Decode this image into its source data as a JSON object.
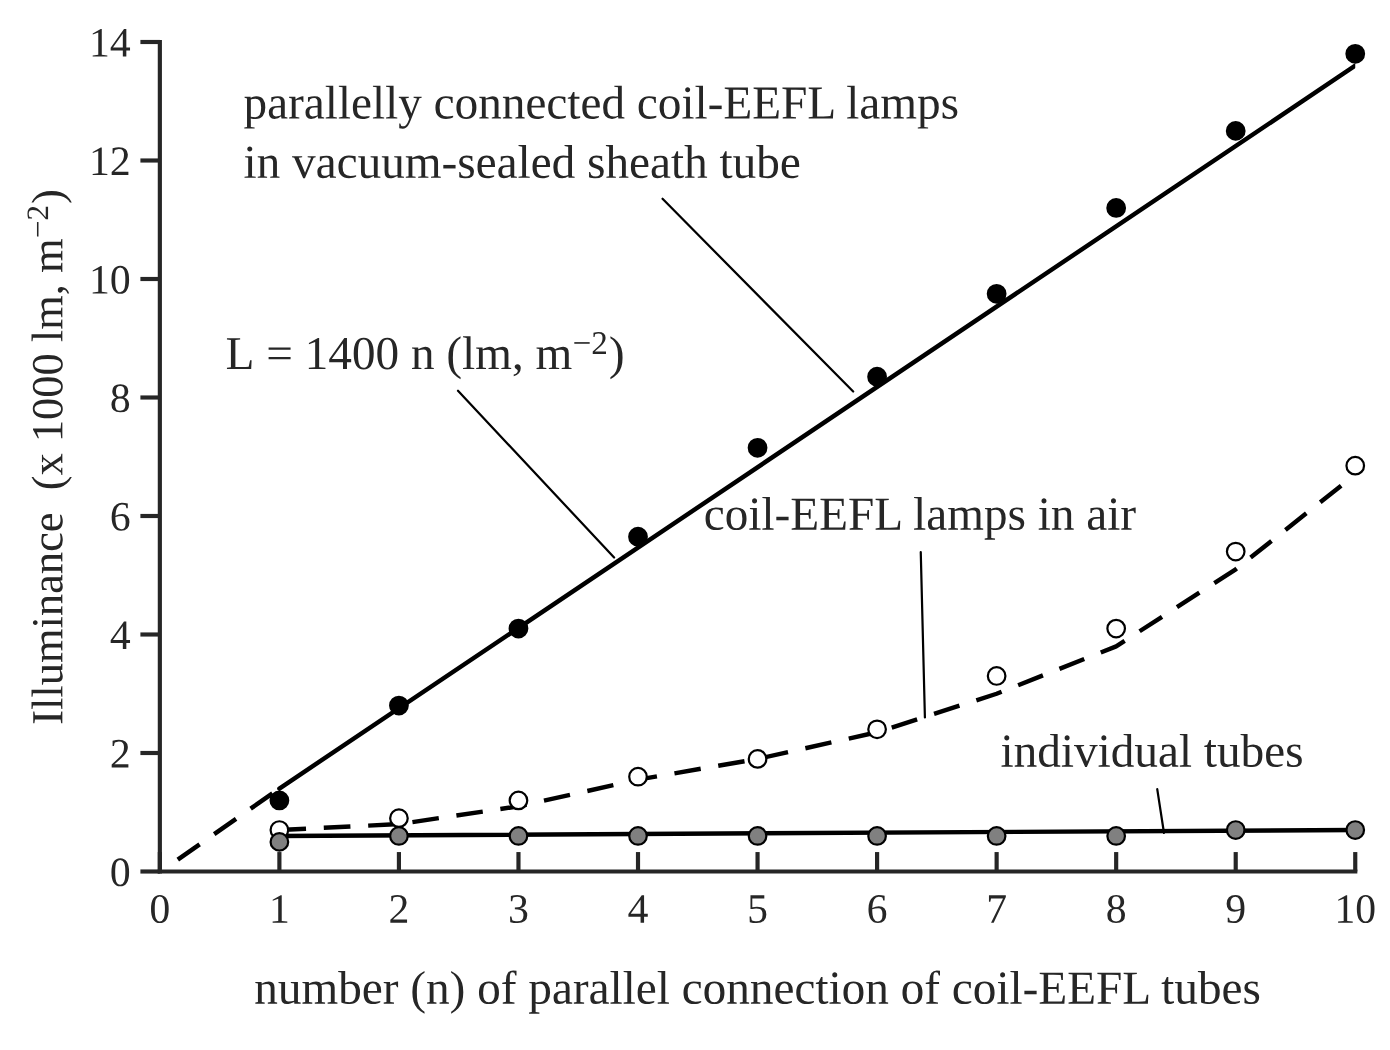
{
  "chart_data": {
    "type": "scatter",
    "xlabel": "number (n) of parallel connection of coil-EEFL tubes",
    "ylabel": "Illuminance  (x 1000 lm, m$^{−2}$)",
    "xlim": [
      0,
      10
    ],
    "ylim": [
      0,
      14
    ],
    "xticks": [
      0,
      1,
      2,
      3,
      4,
      5,
      6,
      7,
      8,
      9,
      10
    ],
    "yticks": [
      0,
      2,
      4,
      6,
      8,
      10,
      12,
      14
    ],
    "grid": false,
    "legend": false,
    "series": [
      {
        "type": "line",
        "color": "#000000",
        "line_style": "dashed",
        "marker": "none",
        "x": [
          0.15,
          1
        ],
        "values": [
          0.2,
          1.4
        ]
      },
      {
        "type": "line",
        "color": "#000000",
        "line_style": "solid",
        "marker": "none",
        "x": [
          1,
          10
        ],
        "values": [
          1.4,
          13.6
        ]
      },
      {
        "type": "line",
        "color": "#000000",
        "line_style": "dashed",
        "marker": "none",
        "x": [
          1,
          2,
          3,
          4,
          5,
          6,
          7,
          8,
          9,
          10
        ],
        "values": [
          0.7,
          0.8,
          1.1,
          1.55,
          1.9,
          2.35,
          3.0,
          3.8,
          5.1,
          6.7
        ]
      },
      {
        "type": "line",
        "color": "#000000",
        "line_style": "solid",
        "marker": "none",
        "x": [
          1,
          10
        ],
        "values": [
          0.6,
          0.7
        ]
      },
      {
        "color": "#000000",
        "marker": "circle",
        "x": [
          1,
          2,
          3,
          4,
          5,
          6,
          7,
          8,
          9,
          10
        ],
        "values": [
          1.2,
          2.8,
          4.1,
          5.65,
          7.15,
          8.35,
          9.75,
          11.2,
          12.5,
          13.8
        ]
      },
      {
        "color": "#ffffff",
        "marker": "circle",
        "x": [
          1,
          2,
          3,
          4,
          5,
          6,
          7,
          8,
          9,
          10
        ],
        "values": [
          0.7,
          0.9,
          1.2,
          1.6,
          1.9,
          2.4,
          3.3,
          4.1,
          5.4,
          6.85
        ]
      },
      {
        "color": "#808080",
        "marker": "circle",
        "x": [
          1,
          2,
          3,
          4,
          5,
          6,
          7,
          8,
          9,
          10
        ],
        "values": [
          0.5,
          0.6,
          0.6,
          0.6,
          0.6,
          0.6,
          0.6,
          0.6,
          0.7,
          0.7
        ]
      }
    ],
    "annotations": [
      {
        "text": "parallelly connected coil-EEFL lamps\nin vacuum-sealed sheath tube",
        "x": 5.8,
        "y": 8.1
      },
      {
        "text": "L = 1400 n (lm, m$^{−2}$)",
        "x": 3.8,
        "y": 5.3
      },
      {
        "text": "coil-EEFL lamps in air",
        "x": 6.4,
        "y": 2.6
      },
      {
        "text": "individual tubes",
        "x": 8.4,
        "y": 0.65
      }
    ]
  }
}
